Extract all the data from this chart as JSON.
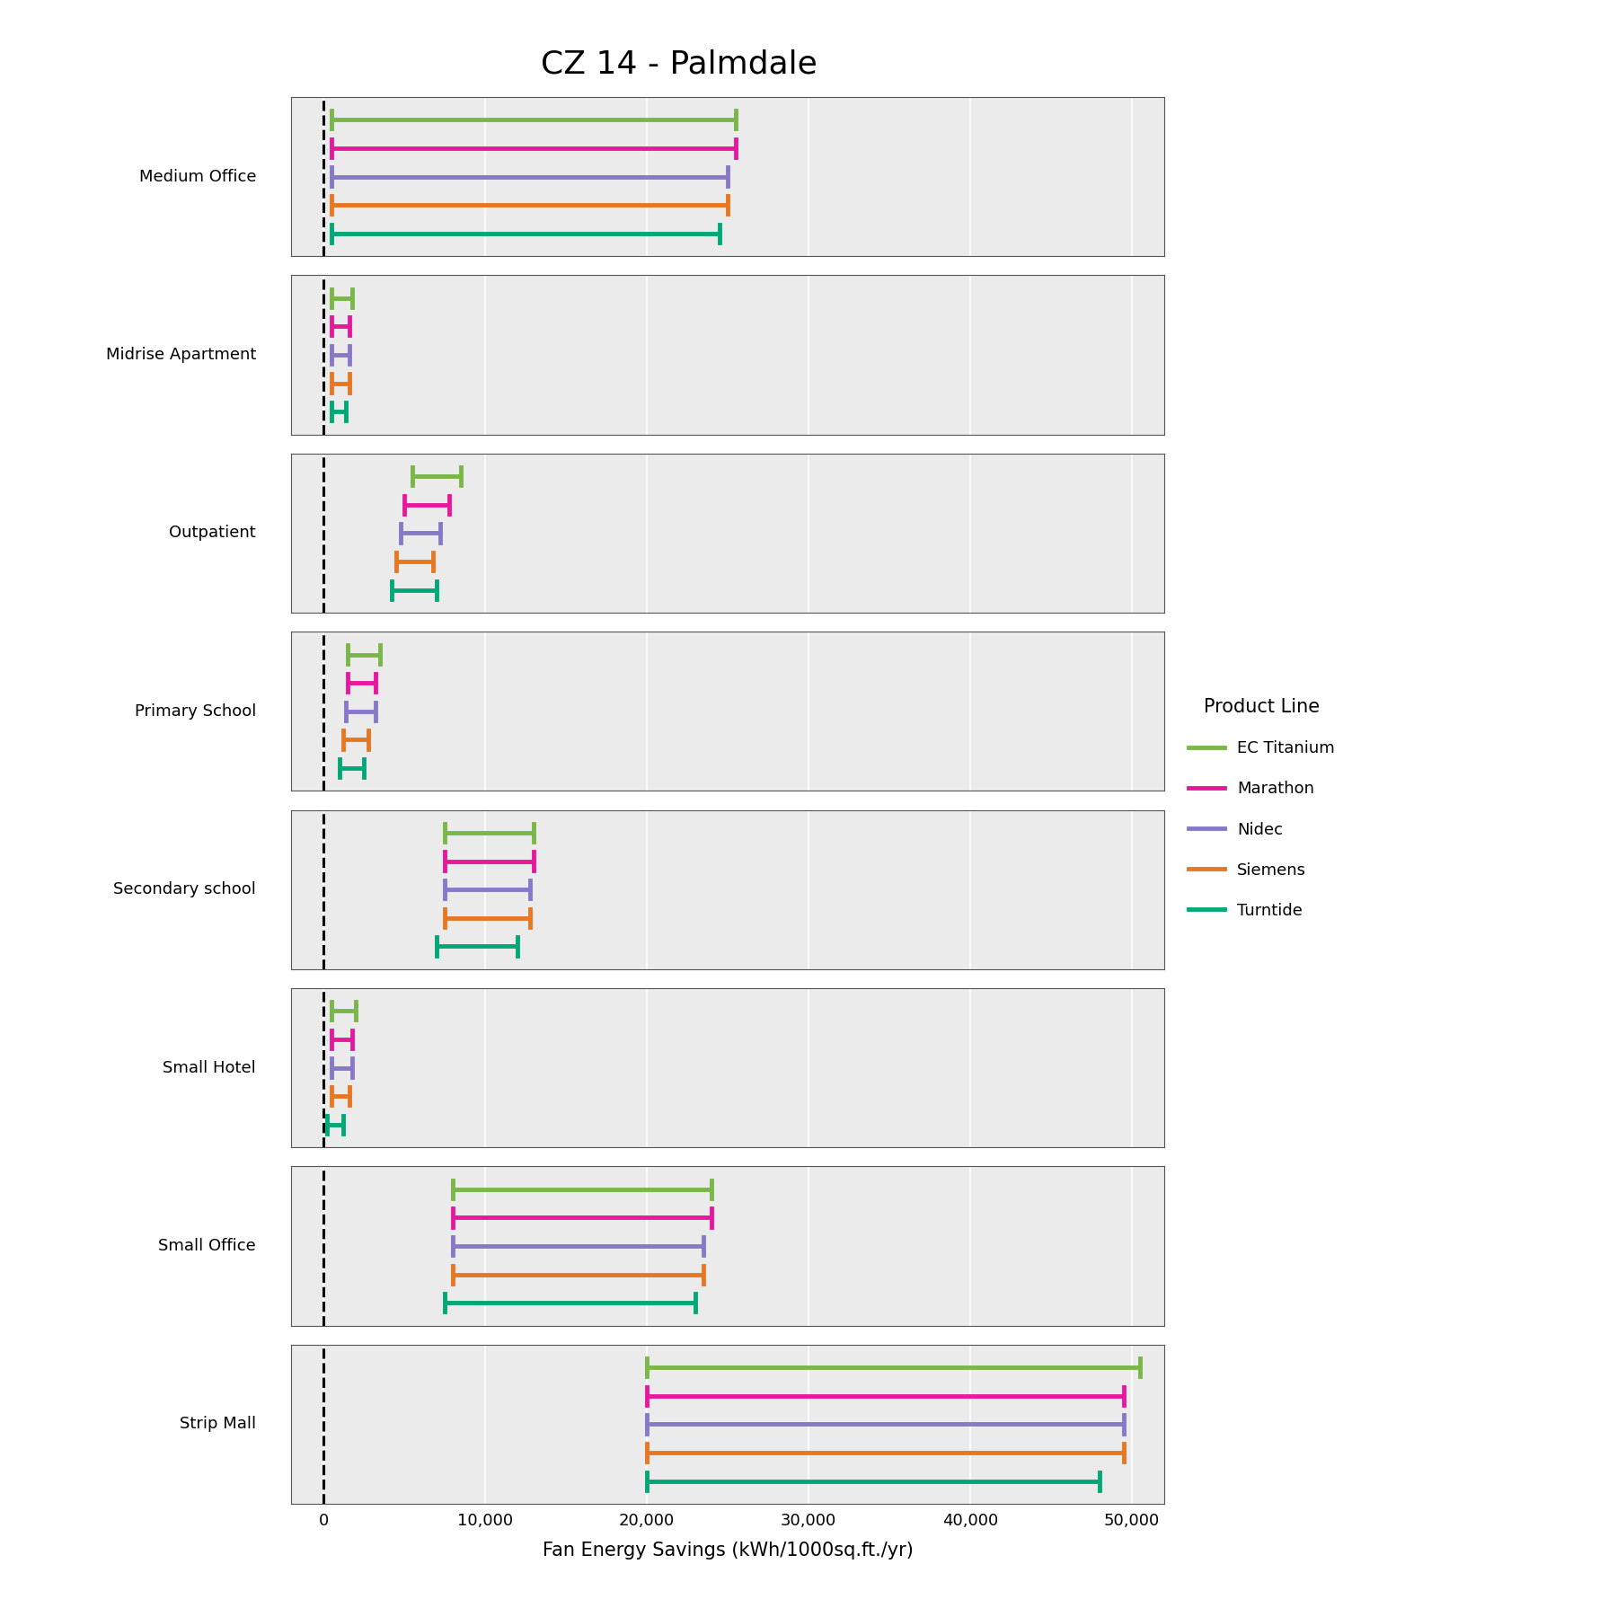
{
  "title": "CZ 14 - Palmdale",
  "xlabel": "Fan Energy Savings (kWh/1000sq.ft./yr)",
  "building_types": [
    "Medium Office",
    "Midrise Apartment",
    "Outpatient",
    "Primary School",
    "Secondary school",
    "Small Hotel",
    "Small Office",
    "Strip Mall"
  ],
  "product_lines": [
    "EC Titanium",
    "Marathon",
    "Nidec",
    "Siemens",
    "Turntide"
  ],
  "colors": {
    "EC Titanium": "#7ab648",
    "Marathon": "#e8189c",
    "Nidec": "#8878c8",
    "Siemens": "#e87722",
    "Turntide": "#00a878"
  },
  "data": {
    "Medium Office": {
      "EC Titanium": [
        500,
        25500
      ],
      "Marathon": [
        500,
        25500
      ],
      "Nidec": [
        500,
        25000
      ],
      "Siemens": [
        500,
        25000
      ],
      "Turntide": [
        500,
        24500
      ]
    },
    "Midrise Apartment": {
      "EC Titanium": [
        500,
        1800
      ],
      "Marathon": [
        500,
        1600
      ],
      "Nidec": [
        500,
        1600
      ],
      "Siemens": [
        500,
        1600
      ],
      "Turntide": [
        500,
        1400
      ]
    },
    "Outpatient": {
      "EC Titanium": [
        5500,
        8500
      ],
      "Marathon": [
        5000,
        7800
      ],
      "Nidec": [
        4800,
        7200
      ],
      "Siemens": [
        4500,
        6800
      ],
      "Turntide": [
        4200,
        7000
      ]
    },
    "Primary School": {
      "EC Titanium": [
        1500,
        3500
      ],
      "Marathon": [
        1500,
        3200
      ],
      "Nidec": [
        1400,
        3200
      ],
      "Siemens": [
        1200,
        2800
      ],
      "Turntide": [
        1000,
        2500
      ]
    },
    "Secondary school": {
      "EC Titanium": [
        7500,
        13000
      ],
      "Marathon": [
        7500,
        13000
      ],
      "Nidec": [
        7500,
        12800
      ],
      "Siemens": [
        7500,
        12800
      ],
      "Turntide": [
        7000,
        12000
      ]
    },
    "Small Hotel": {
      "EC Titanium": [
        500,
        2000
      ],
      "Marathon": [
        500,
        1800
      ],
      "Nidec": [
        500,
        1800
      ],
      "Siemens": [
        500,
        1600
      ],
      "Turntide": [
        200,
        1200
      ]
    },
    "Small Office": {
      "EC Titanium": [
        8000,
        24000
      ],
      "Marathon": [
        8000,
        24000
      ],
      "Nidec": [
        8000,
        23500
      ],
      "Siemens": [
        8000,
        23500
      ],
      "Turntide": [
        7500,
        23000
      ]
    },
    "Strip Mall": {
      "EC Titanium": [
        20000,
        50500
      ],
      "Marathon": [
        20000,
        49500
      ],
      "Nidec": [
        20000,
        49500
      ],
      "Siemens": [
        20000,
        49500
      ],
      "Turntide": [
        20000,
        48000
      ]
    }
  },
  "xlim": [
    -2000,
    52000
  ],
  "xticks": [
    0,
    10000,
    20000,
    30000,
    40000,
    50000
  ],
  "xtick_labels": [
    "0",
    "10,000",
    "20,000",
    "30,000",
    "40,000",
    "50,000"
  ],
  "dashed_line_x": 0,
  "background_color": "#ffffff",
  "panel_background": "#ebebeb"
}
